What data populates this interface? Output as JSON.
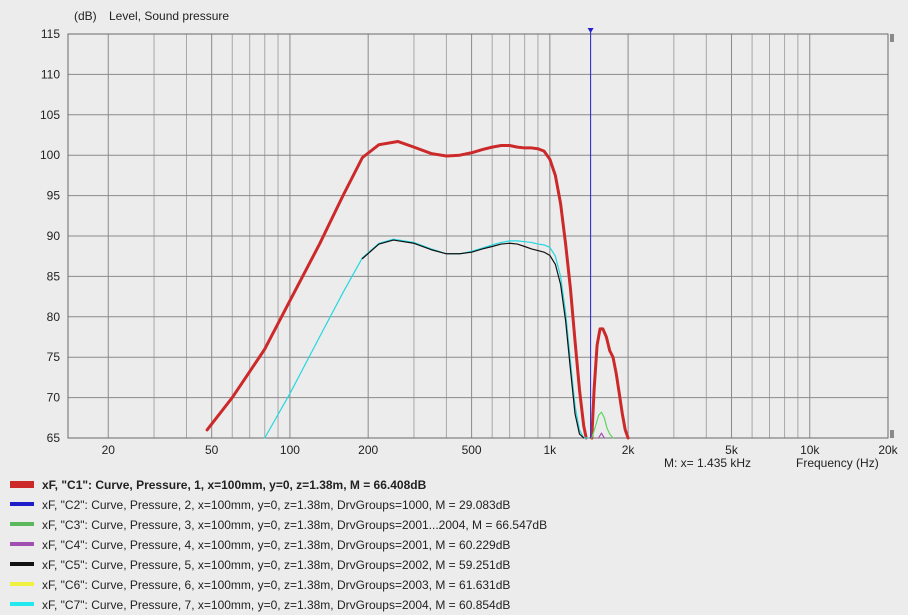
{
  "chart_data": {
    "type": "line",
    "title": "Level, Sound pressure",
    "ylabel": "(dB)",
    "xlabel": "Frequency  (Hz)",
    "x_scale": "log",
    "xlim": [
      14,
      20000
    ],
    "ylim": [
      65,
      115
    ],
    "grid": true,
    "y_ticks": [
      "115",
      "110",
      "105",
      "100",
      "95",
      "90",
      "85",
      "80",
      "75",
      "70",
      "65"
    ],
    "x_ticks": [
      {
        "value": 20,
        "label": "20"
      },
      {
        "value": 50,
        "label": "50"
      },
      {
        "value": 100,
        "label": "100"
      },
      {
        "value": 200,
        "label": "200"
      },
      {
        "value": 500,
        "label": "500"
      },
      {
        "value": 1000,
        "label": "1k"
      },
      {
        "value": 2000,
        "label": "2k"
      },
      {
        "value": 5000,
        "label": "5k"
      },
      {
        "value": 10000,
        "label": "10k"
      },
      {
        "value": 20000,
        "label": "20k"
      }
    ],
    "marker": {
      "x": 1435,
      "label": "M:  x= 1.435 kHz"
    },
    "series": [
      {
        "name": "xF, \"C1\": Curve, Pressure, 1, x=100mm, y=0, z=1.38m, M = 66.408dB",
        "color": "#cc2a2a",
        "x": [
          48,
          60,
          80,
          100,
          130,
          160,
          190,
          220,
          260,
          300,
          350,
          400,
          450,
          500,
          550,
          600,
          650,
          700,
          750,
          800,
          850,
          900,
          950,
          1000,
          1050,
          1100,
          1150,
          1200,
          1250,
          1300,
          1350,
          1380
        ],
        "values": [
          66,
          70,
          76,
          82,
          89,
          95,
          99.7,
          101.3,
          101.7,
          101.0,
          100.2,
          99.9,
          100.0,
          100.3,
          100.7,
          101.0,
          101.2,
          101.2,
          101.0,
          100.9,
          100.9,
          100.8,
          100.5,
          99.5,
          97.5,
          94.0,
          89.0,
          83.5,
          77.0,
          71.0,
          66.5,
          65
        ]
      },
      {
        "name": "xF, \"C1\": Curve, Pressure, 1, x=100mm, y=0, z=1.38m, M = 66.408dB",
        "color": "#cc2a2a",
        "x": [
          1450,
          1480,
          1520,
          1560,
          1600,
          1650,
          1700,
          1750,
          1800,
          1850,
          1900,
          1950,
          2000
        ],
        "values": [
          65,
          71,
          76.5,
          78.5,
          78.5,
          77.5,
          75.8,
          75.0,
          73.0,
          70.5,
          68.0,
          66.0,
          65
        ]
      },
      {
        "name": "xF, \"C2\": Curve, Pressure, 2, x=100mm, y=0, z=1.38m, DrvGroups=1000, M = 29.083dB",
        "color": "#1c1cc8",
        "x": [],
        "values": []
      },
      {
        "name": "xF, \"C7\": Curve, Pressure, 7, x=100mm, y=0, z=1.38m, DrvGroups=2004, M = 60.854dB",
        "color": "#22d8e0",
        "x": [
          80,
          100,
          130,
          160,
          190,
          220,
          250,
          300,
          350,
          400,
          450,
          500,
          550,
          600,
          650,
          700,
          750,
          800,
          850,
          900,
          950,
          1000,
          1050,
          1100,
          1150,
          1200,
          1250,
          1300,
          1350,
          1400
        ],
        "values": [
          65,
          70.5,
          77.5,
          83,
          87.3,
          89.1,
          89.6,
          89.2,
          88.4,
          87.8,
          87.8,
          88.1,
          88.5,
          88.9,
          89.2,
          89.4,
          89.4,
          89.3,
          89.2,
          89.0,
          88.9,
          88.6,
          87.5,
          85.0,
          80.5,
          74.5,
          69.0,
          66.0,
          65,
          65
        ]
      },
      {
        "name": "xF, \"C5\": Curve, Pressure, 5, x=100mm, y=0, z=1.38m, DrvGroups=2002, M = 59.251dB",
        "color": "#111111",
        "x": [
          190,
          220,
          250,
          300,
          350,
          400,
          450,
          500,
          550,
          600,
          650,
          700,
          750,
          800,
          850,
          900,
          950,
          1000,
          1050,
          1100,
          1150,
          1200,
          1250,
          1300,
          1350
        ],
        "values": [
          87.2,
          89.0,
          89.5,
          89.1,
          88.3,
          87.8,
          87.8,
          88.0,
          88.4,
          88.7,
          89.0,
          89.1,
          89.0,
          88.7,
          88.4,
          88.2,
          88.0,
          87.6,
          86.5,
          84.0,
          79.5,
          73.5,
          68.0,
          65.5,
          65
        ]
      },
      {
        "name": "xF, \"C4\": Curve, Pressure, 4, x=100mm, y=0, z=1.38m, DrvGroups=2001, M = 60.229dB",
        "color": "#a050b0",
        "x": [
          1540,
          1580,
          1620
        ],
        "values": [
          65,
          65.6,
          65
        ]
      },
      {
        "name": "xF, \"C3\": Curve, Pressure, 3, x=100mm, y=0, z=1.38m, DrvGroups=2001...2004, M = 66.547dB",
        "color": "#5cd85c",
        "x": [
          1450,
          1500,
          1540,
          1580,
          1620,
          1660,
          1700,
          1750
        ],
        "values": [
          65,
          66.5,
          67.8,
          68.2,
          67.5,
          66.2,
          65.5,
          65
        ]
      }
    ]
  },
  "legend": [
    {
      "label": "xF, \"C1\": Curve, Pressure, 1, x=100mm, y=0, z=1.38m, M = 66.408dB",
      "color": "#cc2a2a"
    },
    {
      "label": "xF, \"C2\": Curve, Pressure, 2, x=100mm, y=0, z=1.38m, DrvGroups=1000, M = 29.083dB",
      "color": "#1c1cc8"
    },
    {
      "label": "xF, \"C3\": Curve, Pressure, 3, x=100mm, y=0, z=1.38m, DrvGroups=2001...2004, M = 66.547dB",
      "color": "#5cb85c"
    },
    {
      "label": "xF, \"C4\": Curve, Pressure, 4, x=100mm, y=0, z=1.38m, DrvGroups=2001, M = 60.229dB",
      "color": "#a050b0"
    },
    {
      "label": "xF, \"C5\": Curve, Pressure, 5, x=100mm, y=0, z=1.38m, DrvGroups=2002, M = 59.251dB",
      "color": "#111111"
    },
    {
      "label": "xF, \"C6\": Curve, Pressure, 6, x=100mm, y=0, z=1.38m, DrvGroups=2003, M = 61.631dB",
      "color": "#f0f040"
    },
    {
      "label": "xF, \"C7\": Curve, Pressure, 7, x=100mm, y=0, z=1.38m, DrvGroups=2004, M = 60.854dB",
      "color": "#22e8f0"
    }
  ]
}
